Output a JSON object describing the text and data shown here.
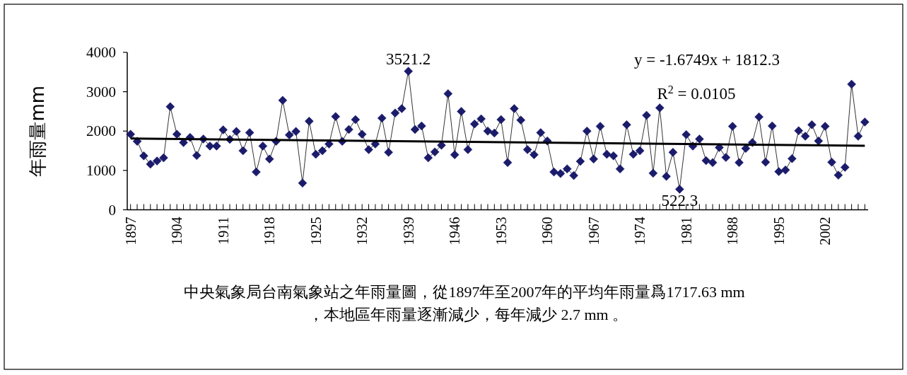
{
  "chart_data": {
    "type": "line",
    "ylabel": "年雨量mm",
    "x": [
      1897,
      1898,
      1899,
      1900,
      1901,
      1902,
      1903,
      1904,
      1905,
      1906,
      1907,
      1908,
      1909,
      1910,
      1911,
      1912,
      1913,
      1914,
      1915,
      1916,
      1917,
      1918,
      1919,
      1920,
      1921,
      1922,
      1923,
      1924,
      1925,
      1926,
      1927,
      1928,
      1929,
      1930,
      1931,
      1932,
      1933,
      1934,
      1935,
      1936,
      1937,
      1938,
      1939,
      1940,
      1941,
      1942,
      1943,
      1944,
      1945,
      1946,
      1947,
      1948,
      1949,
      1950,
      1951,
      1952,
      1953,
      1954,
      1955,
      1956,
      1957,
      1958,
      1959,
      1960,
      1961,
      1962,
      1963,
      1964,
      1965,
      1966,
      1967,
      1968,
      1969,
      1970,
      1971,
      1972,
      1973,
      1974,
      1975,
      1976,
      1977,
      1978,
      1979,
      1980,
      1981,
      1982,
      1983,
      1984,
      1985,
      1986,
      1987,
      1988,
      1989,
      1990,
      1991,
      1992,
      1993,
      1994,
      1995,
      1996,
      1997,
      1998,
      1999,
      2000,
      2001,
      2002,
      2003,
      2004,
      2005,
      2006,
      2007,
      2008
    ],
    "series": [
      {
        "color": "#1b1b6b",
        "marker": "diamond",
        "values": [
          1920,
          1740,
          1370,
          1160,
          1240,
          1320,
          2620,
          1920,
          1710,
          1840,
          1380,
          1800,
          1620,
          1620,
          2030,
          1790,
          1990,
          1500,
          1960,
          960,
          1620,
          1290,
          1740,
          2780,
          1900,
          1990,
          680,
          2250,
          1410,
          1500,
          1670,
          2370,
          1740,
          2040,
          2290,
          1920,
          1530,
          1670,
          2330,
          1460,
          2460,
          2570,
          3521.2,
          2040,
          2130,
          1320,
          1470,
          1640,
          2950,
          1400,
          2500,
          1530,
          2180,
          2310,
          2000,
          1950,
          2290,
          1200,
          2570,
          2280,
          1530,
          1400,
          1960,
          1750,
          960,
          920,
          1040,
          870,
          1230,
          2000,
          1290,
          2120,
          1410,
          1370,
          1040,
          2160,
          1410,
          1500,
          2400,
          930,
          2590,
          850,
          1460,
          522.3,
          1910,
          1620,
          1800,
          1250,
          1200,
          1580,
          1330,
          2120,
          1200,
          1560,
          1710,
          2360,
          1210,
          2130,
          970,
          1010,
          1300,
          2010,
          1870,
          2160,
          1750,
          2120,
          1210,
          880,
          1080,
          3190,
          1870,
          2230
        ]
      },
      {
        "color": "#000000",
        "marker": "none",
        "x": [
          1897,
          2008
        ],
        "values": [
          1810,
          1625
        ]
      }
    ],
    "xlim": [
      1896.5,
      2008.5
    ],
    "xticks": [
      1897,
      {
        "value": 1898,
        "label": null
      },
      {
        "value": 1899,
        "label": null
      },
      {
        "value": 1900,
        "label": null
      },
      {
        "value": 1901,
        "label": null
      },
      {
        "value": 1902,
        "label": null
      },
      {
        "value": 1903,
        "label": null
      },
      1904,
      {
        "value": 1905,
        "label": null
      },
      {
        "value": 1906,
        "label": null
      },
      {
        "value": 1907,
        "label": null
      },
      {
        "value": 1908,
        "label": null
      },
      {
        "value": 1909,
        "label": null
      },
      {
        "value": 1910,
        "label": null
      },
      1911,
      {
        "value": 1912,
        "label": null
      },
      {
        "value": 1913,
        "label": null
      },
      {
        "value": 1914,
        "label": null
      },
      {
        "value": 1915,
        "label": null
      },
      {
        "value": 1916,
        "label": null
      },
      {
        "value": 1917,
        "label": null
      },
      1918,
      {
        "value": 1919,
        "label": null
      },
      {
        "value": 1920,
        "label": null
      },
      {
        "value": 1921,
        "label": null
      },
      {
        "value": 1922,
        "label": null
      },
      {
        "value": 1923,
        "label": null
      },
      {
        "value": 1924,
        "label": null
      },
      1925,
      {
        "value": 1926,
        "label": null
      },
      {
        "value": 1927,
        "label": null
      },
      {
        "value": 1928,
        "label": null
      },
      {
        "value": 1929,
        "label": null
      },
      {
        "value": 1930,
        "label": null
      },
      {
        "value": 1931,
        "label": null
      },
      1932,
      {
        "value": 1933,
        "label": null
      },
      {
        "value": 1934,
        "label": null
      },
      {
        "value": 1935,
        "label": null
      },
      {
        "value": 1936,
        "label": null
      },
      {
        "value": 1937,
        "label": null
      },
      {
        "value": 1938,
        "label": null
      },
      1939,
      {
        "value": 1940,
        "label": null
      },
      {
        "value": 1941,
        "label": null
      },
      {
        "value": 1942,
        "label": null
      },
      {
        "value": 1943,
        "label": null
      },
      {
        "value": 1944,
        "label": null
      },
      {
        "value": 1945,
        "label": null
      },
      1946,
      {
        "value": 1947,
        "label": null
      },
      {
        "value": 1948,
        "label": null
      },
      {
        "value": 1949,
        "label": null
      },
      {
        "value": 1950,
        "label": null
      },
      {
        "value": 1951,
        "label": null
      },
      {
        "value": 1952,
        "label": null
      },
      1953,
      {
        "value": 1954,
        "label": null
      },
      {
        "value": 1955,
        "label": null
      },
      {
        "value": 1956,
        "label": null
      },
      {
        "value": 1957,
        "label": null
      },
      {
        "value": 1958,
        "label": null
      },
      {
        "value": 1959,
        "label": null
      },
      1960,
      {
        "value": 1961,
        "label": null
      },
      {
        "value": 1962,
        "label": null
      },
      {
        "value": 1963,
        "label": null
      },
      {
        "value": 1964,
        "label": null
      },
      {
        "value": 1965,
        "label": null
      },
      {
        "value": 1966,
        "label": null
      },
      1967,
      {
        "value": 1968,
        "label": null
      },
      {
        "value": 1969,
        "label": null
      },
      {
        "value": 1970,
        "label": null
      },
      {
        "value": 1971,
        "label": null
      },
      {
        "value": 1972,
        "label": null
      },
      {
        "value": 1973,
        "label": null
      },
      1974,
      {
        "value": 1975,
        "label": null
      },
      {
        "value": 1976,
        "label": null
      },
      {
        "value": 1977,
        "label": null
      },
      {
        "value": 1978,
        "label": null
      },
      {
        "value": 1979,
        "label": null
      },
      {
        "value": 1980,
        "label": null
      },
      1981,
      {
        "value": 1982,
        "label": null
      },
      {
        "value": 1983,
        "label": null
      },
      {
        "value": 1984,
        "label": null
      },
      {
        "value": 1985,
        "label": null
      },
      {
        "value": 1986,
        "label": null
      },
      {
        "value": 1987,
        "label": null
      },
      1988,
      {
        "value": 1989,
        "label": null
      },
      {
        "value": 1990,
        "label": null
      },
      {
        "value": 1991,
        "label": null
      },
      {
        "value": 1992,
        "label": null
      },
      {
        "value": 1993,
        "label": null
      },
      {
        "value": 1994,
        "label": null
      },
      1995,
      {
        "value": 1996,
        "label": null
      },
      {
        "value": 1997,
        "label": null
      },
      {
        "value": 1998,
        "label": null
      },
      {
        "value": 1999,
        "label": null
      },
      {
        "value": 2000,
        "label": null
      },
      {
        "value": 2001,
        "label": null
      },
      2002,
      {
        "value": 2003,
        "label": null
      },
      {
        "value": 2004,
        "label": null
      },
      {
        "value": 2005,
        "label": null
      },
      {
        "value": 2006,
        "label": null
      },
      {
        "value": 2007,
        "label": null
      },
      {
        "value": 2008,
        "label": null
      }
    ],
    "ylim": [
      0,
      4000
    ],
    "yticks": [
      0,
      1000,
      2000,
      3000,
      4000
    ],
    "annotations": [
      {
        "text": "3521.2",
        "x": 1939,
        "y": 3521.2
      },
      {
        "text": "522.3",
        "x": 1980,
        "y": 522.3
      },
      "y = -1.6749x + 1812.3",
      "R$^{2}$ = 0.0105",
      "中央氣象局台南氣象站之年雨量圖，從1897年至2007年的平均年雨量爲1717.63 mm",
      "，本地區年雨量逐漸減少，每年減少 2.7 mm 。"
    ]
  }
}
